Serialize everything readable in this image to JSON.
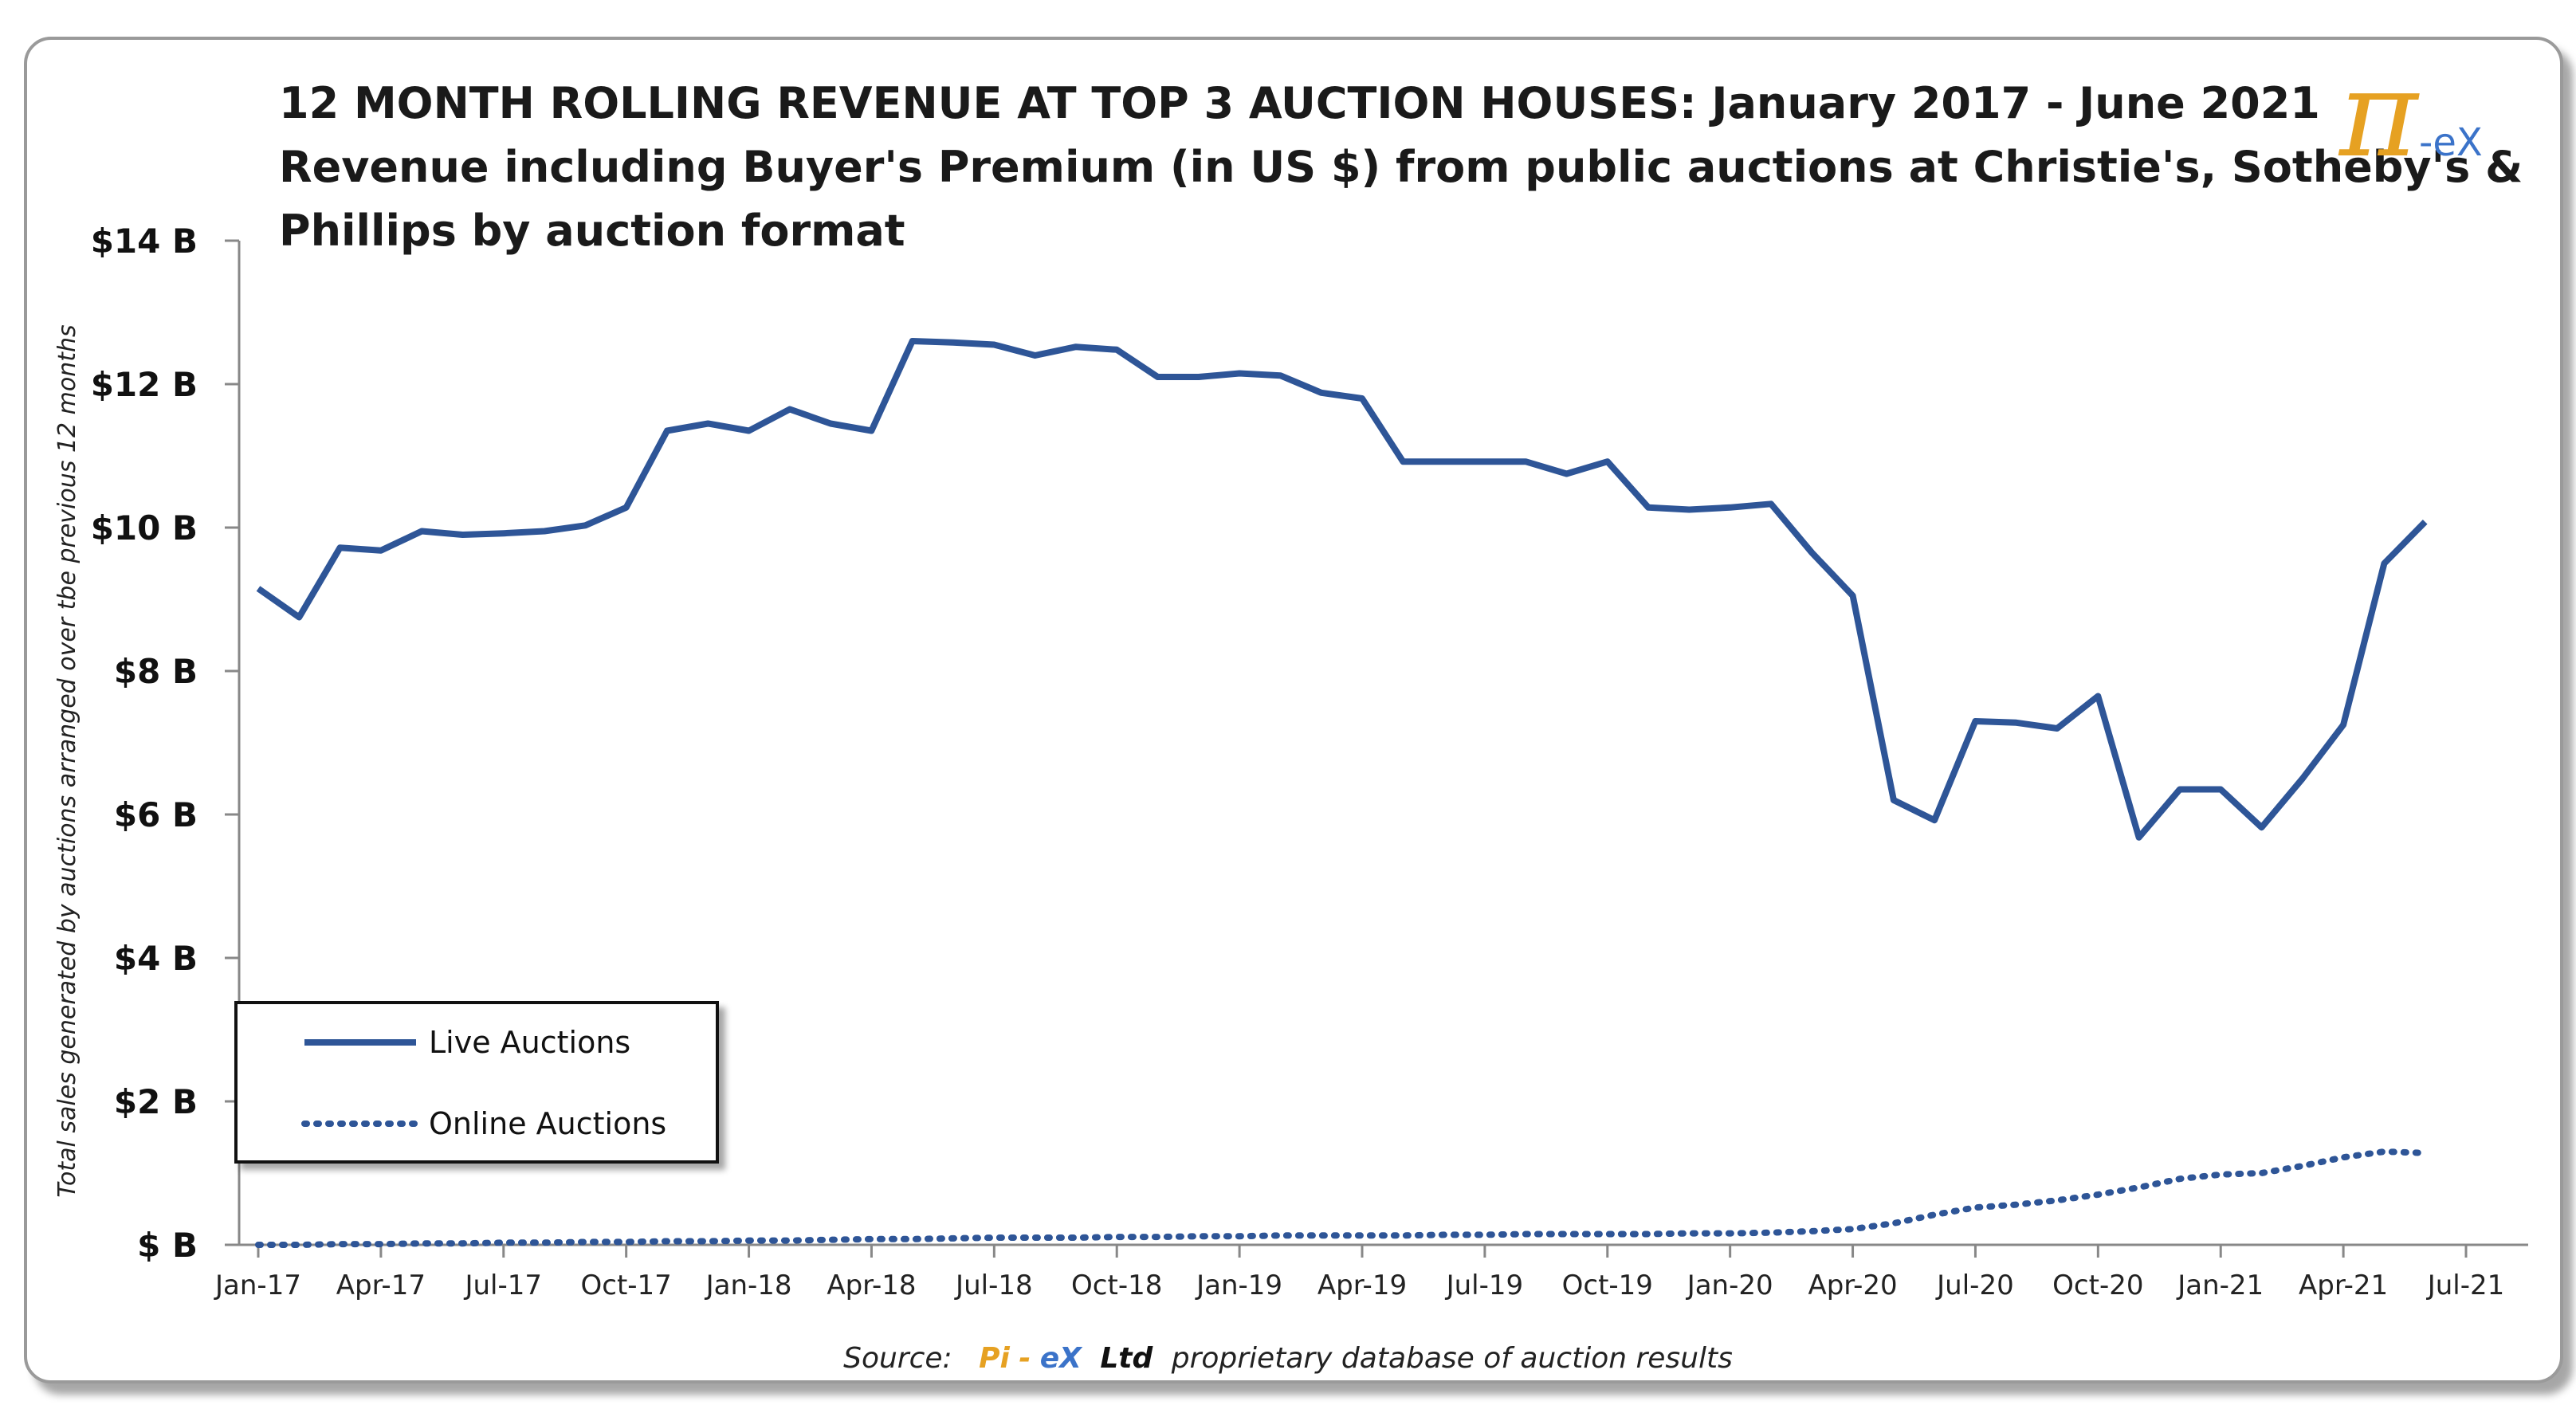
{
  "chart_data": {
    "type": "line",
    "title_lines": [
      "12 MONTH ROLLING REVENUE AT TOP 3 AUCTION HOUSES: January 2017 - June 2021",
      "Revenue including Buyer's Premium (in US $) from public auctions at Christie's, Sotheby's &",
      "Phillips by auction format"
    ],
    "ylabel": "Total sales generated by auctions arranged over tbe previous 12 months",
    "ylim": [
      0,
      14
    ],
    "yticks": [
      0,
      2,
      4,
      6,
      8,
      10,
      12,
      14
    ],
    "ytick_labels": [
      "$ B",
      "$2 B",
      "$4 B",
      "$6 B",
      "$8 B",
      "$10 B",
      "$12 B",
      "$14 B"
    ],
    "x_tick_labels": [
      "Jan-17",
      "Apr-17",
      "Jul-17",
      "Oct-17",
      "Jan-18",
      "Apr-18",
      "Jul-18",
      "Oct-18",
      "Jan-19",
      "Apr-19",
      "Jul-19",
      "Oct-19",
      "Jan-20",
      "Apr-20",
      "Jul-20",
      "Oct-20",
      "Jan-21",
      "Apr-21",
      "Jul-21"
    ],
    "x_tick_month_index": [
      0,
      3,
      6,
      9,
      12,
      15,
      18,
      21,
      24,
      27,
      30,
      33,
      36,
      39,
      42,
      45,
      48,
      51,
      54
    ],
    "months_range": [
      0,
      54
    ],
    "x_start": "Jan-17",
    "series": [
      {
        "name": "Live Auctions",
        "style": "solid",
        "values": [
          9.15,
          8.75,
          9.72,
          9.68,
          9.95,
          9.9,
          9.92,
          9.95,
          10.03,
          10.28,
          11.35,
          11.45,
          11.35,
          11.65,
          11.45,
          11.35,
          12.6,
          12.58,
          12.55,
          12.4,
          12.52,
          12.48,
          12.1,
          12.1,
          12.15,
          12.12,
          11.88,
          11.8,
          10.92,
          10.92,
          10.92,
          10.92,
          10.75,
          10.92,
          10.28,
          10.25,
          10.28,
          10.33,
          9.65,
          9.05,
          6.2,
          5.92,
          7.3,
          7.28,
          7.2,
          7.65,
          5.68,
          6.35,
          6.35,
          5.82,
          6.5,
          7.25,
          9.5,
          10.08
        ]
      },
      {
        "name": "Online Auctions",
        "style": "dotted",
        "values": [
          0.0,
          0.0,
          0.01,
          0.01,
          0.02,
          0.02,
          0.03,
          0.03,
          0.04,
          0.04,
          0.05,
          0.05,
          0.06,
          0.06,
          0.07,
          0.08,
          0.08,
          0.09,
          0.1,
          0.1,
          0.1,
          0.11,
          0.11,
          0.12,
          0.12,
          0.13,
          0.13,
          0.13,
          0.13,
          0.14,
          0.14,
          0.15,
          0.15,
          0.15,
          0.15,
          0.16,
          0.16,
          0.17,
          0.19,
          0.22,
          0.3,
          0.42,
          0.52,
          0.56,
          0.62,
          0.7,
          0.8,
          0.92,
          0.98,
          1.0,
          1.1,
          1.22,
          1.3,
          1.28
        ]
      }
    ],
    "color": "#2e5597",
    "legend": [
      "Live Auctions",
      "Online Auctions"
    ],
    "legend_position": "bottom-left"
  },
  "source": {
    "prefix": "Source:",
    "brand_pi": "Pi",
    "brand_dash": "-",
    "brand_ex": "eX",
    "brand_ltd": "Ltd",
    "suffix": "proprietary database of auction results"
  },
  "logo": {
    "symbol": "π",
    "text": "-eX"
  },
  "colors": {
    "series": "#2e5597",
    "brand_gold": "#e6a122",
    "brand_blue": "#3b73c9"
  }
}
